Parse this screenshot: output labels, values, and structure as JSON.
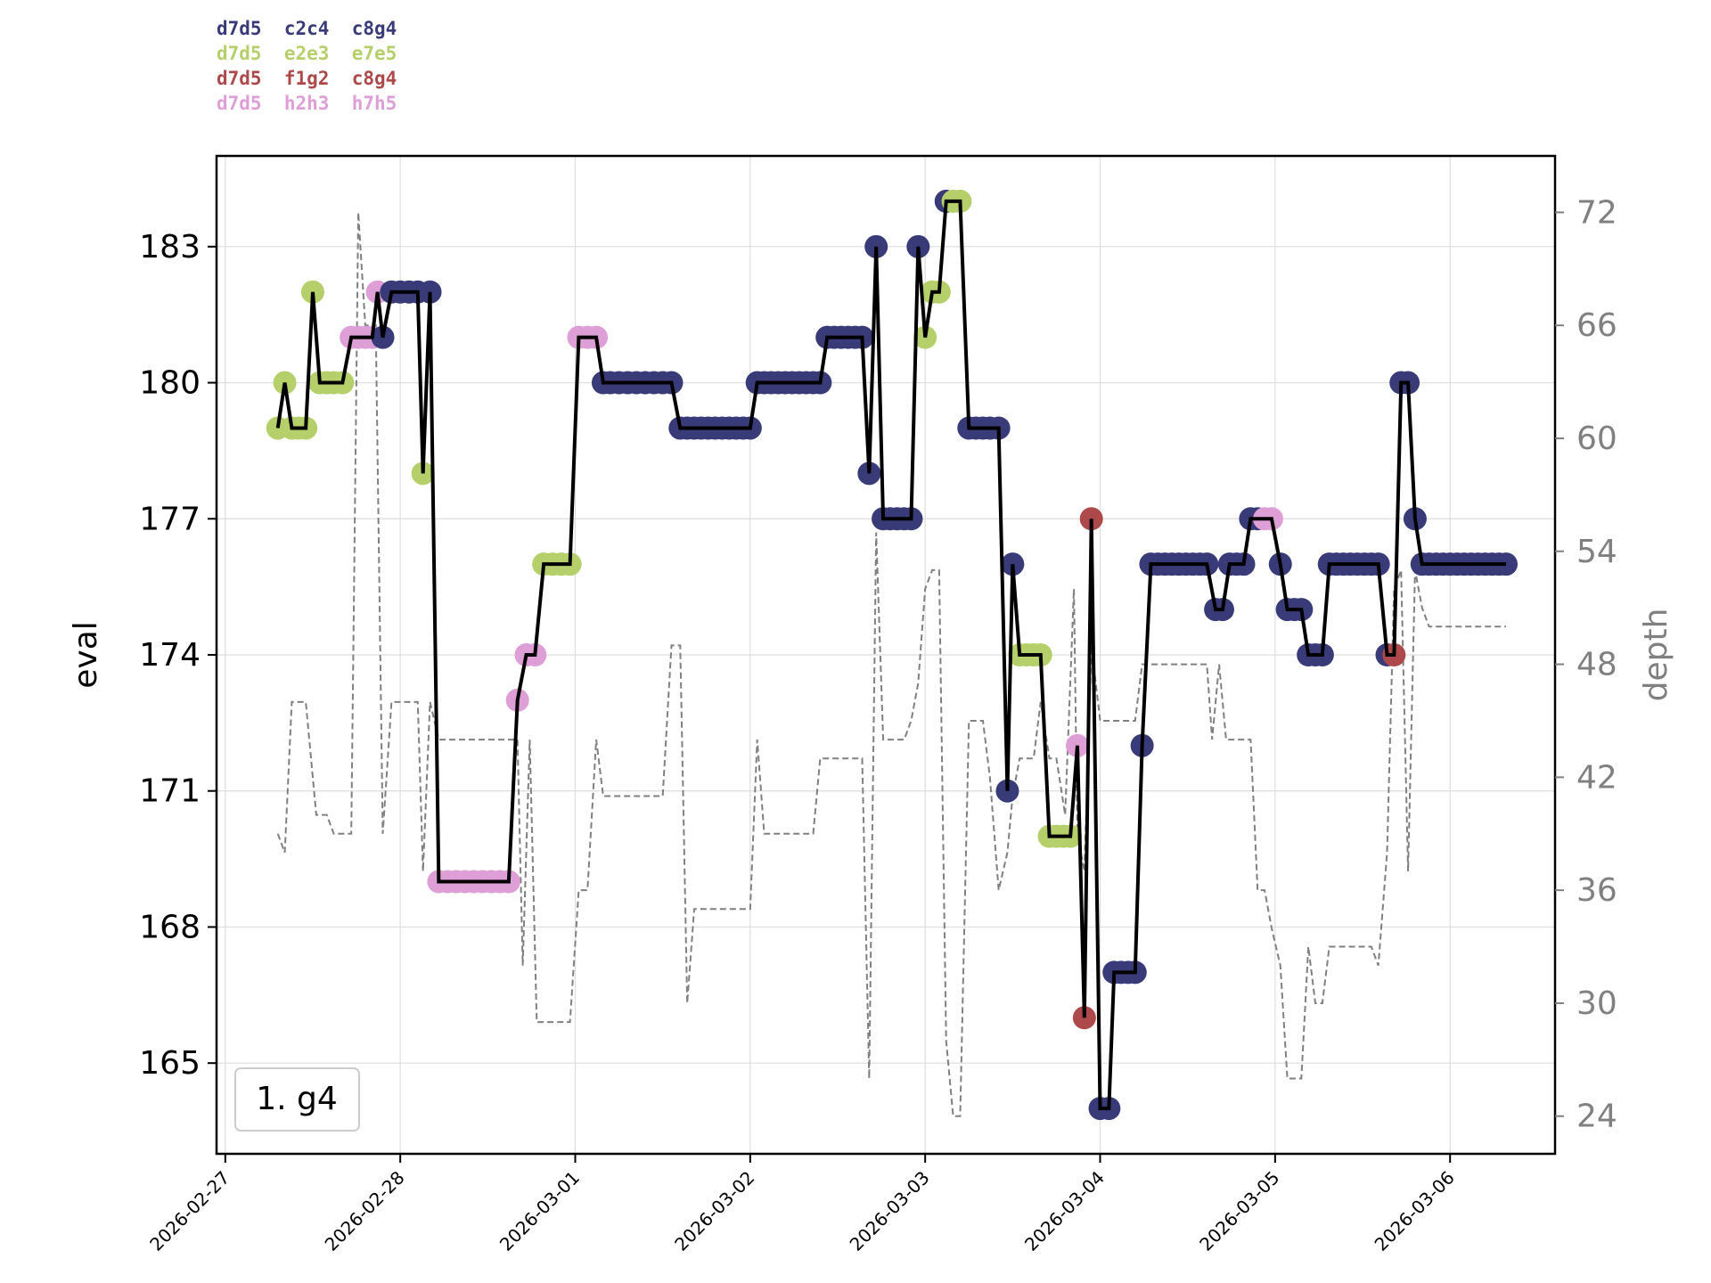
{
  "chart_data": {
    "type": "line",
    "title": "",
    "xlabel": "",
    "ylabel": "eval",
    "y2label": "depth",
    "annotation": "1. g4",
    "grid": true,
    "x_tick_labels": [
      "2026-02-27",
      "2026-02-28",
      "2026-03-01",
      "2026-03-02",
      "2026-03-03",
      "2026-03-04",
      "2026-03-05",
      "2026-03-06"
    ],
    "x_range_days": [
      -0.05,
      7.6
    ],
    "y_ticks": [
      165,
      168,
      171,
      174,
      177,
      180,
      183
    ],
    "y_range": [
      163.0,
      185.0
    ],
    "y2_ticks": [
      24,
      30,
      36,
      42,
      48,
      54,
      60,
      66,
      72
    ],
    "y2_range": [
      22.0,
      75.0
    ],
    "legend": [
      {
        "label": "d7d5  c2c4  c8g4",
        "color": "#393b79"
      },
      {
        "label": "d7d5  e2e3  e7e5",
        "color": "#b5cf6b"
      },
      {
        "label": "d7d5  f1g2  c8g4",
        "color": "#ad494a"
      },
      {
        "label": "d7d5  h2h3  h7h5",
        "color": "#de9ed6"
      }
    ],
    "series": [
      {
        "name": "eval",
        "color": "#000000",
        "points": [
          [
            0.3,
            179,
            1
          ],
          [
            0.34,
            180,
            1
          ],
          [
            0.38,
            179,
            1
          ],
          [
            0.42,
            179,
            1
          ],
          [
            0.46,
            179,
            1
          ],
          [
            0.5,
            182,
            1
          ],
          [
            0.54,
            180,
            1
          ],
          [
            0.58,
            180,
            1
          ],
          [
            0.62,
            180,
            1
          ],
          [
            0.67,
            180,
            1
          ],
          [
            0.72,
            181,
            3
          ],
          [
            0.76,
            181,
            3
          ],
          [
            0.8,
            181,
            3
          ],
          [
            0.84,
            181,
            3
          ],
          [
            0.87,
            182,
            3
          ],
          [
            0.9,
            181,
            0
          ],
          [
            0.95,
            182,
            0
          ],
          [
            1.0,
            182,
            0
          ],
          [
            1.05,
            182,
            0
          ],
          [
            1.1,
            182,
            0
          ],
          [
            1.13,
            178,
            1
          ],
          [
            1.17,
            182,
            0
          ],
          [
            1.22,
            169,
            3
          ],
          [
            1.27,
            169,
            3
          ],
          [
            1.32,
            169,
            3
          ],
          [
            1.37,
            169,
            3
          ],
          [
            1.42,
            169,
            3
          ],
          [
            1.47,
            169,
            3
          ],
          [
            1.52,
            169,
            3
          ],
          [
            1.57,
            169,
            3
          ],
          [
            1.62,
            169,
            3
          ],
          [
            1.67,
            173,
            3
          ],
          [
            1.72,
            174,
            3
          ],
          [
            1.77,
            174,
            3
          ],
          [
            1.82,
            176,
            1
          ],
          [
            1.87,
            176,
            1
          ],
          [
            1.92,
            176,
            1
          ],
          [
            1.97,
            176,
            1
          ],
          [
            2.02,
            181,
            3
          ],
          [
            2.07,
            181,
            3
          ],
          [
            2.12,
            181,
            3
          ],
          [
            2.16,
            180,
            0
          ],
          [
            2.2,
            180,
            0
          ],
          [
            2.25,
            180,
            0
          ],
          [
            2.3,
            180,
            0
          ],
          [
            2.35,
            180,
            0
          ],
          [
            2.4,
            180,
            0
          ],
          [
            2.45,
            180,
            0
          ],
          [
            2.5,
            180,
            0
          ],
          [
            2.55,
            180,
            0
          ],
          [
            2.6,
            179,
            0
          ],
          [
            2.64,
            179,
            0
          ],
          [
            2.68,
            179,
            0
          ],
          [
            2.72,
            179,
            0
          ],
          [
            2.76,
            179,
            0
          ],
          [
            2.8,
            179,
            0
          ],
          [
            2.84,
            179,
            0
          ],
          [
            2.88,
            179,
            0
          ],
          [
            2.92,
            179,
            0
          ],
          [
            2.96,
            179,
            0
          ],
          [
            3.0,
            179,
            0
          ],
          [
            3.04,
            180,
            0
          ],
          [
            3.08,
            180,
            0
          ],
          [
            3.12,
            180,
            0
          ],
          [
            3.16,
            180,
            0
          ],
          [
            3.2,
            180,
            0
          ],
          [
            3.24,
            180,
            0
          ],
          [
            3.28,
            180,
            0
          ],
          [
            3.32,
            180,
            0
          ],
          [
            3.36,
            180,
            0
          ],
          [
            3.4,
            180,
            0
          ],
          [
            3.44,
            181,
            0
          ],
          [
            3.48,
            181,
            0
          ],
          [
            3.52,
            181,
            0
          ],
          [
            3.56,
            181,
            0
          ],
          [
            3.6,
            181,
            0
          ],
          [
            3.64,
            181,
            0
          ],
          [
            3.68,
            178,
            0
          ],
          [
            3.72,
            183,
            0
          ],
          [
            3.76,
            177,
            0
          ],
          [
            3.8,
            177,
            0
          ],
          [
            3.84,
            177,
            0
          ],
          [
            3.88,
            177,
            0
          ],
          [
            3.92,
            177,
            0
          ],
          [
            3.96,
            183,
            0
          ],
          [
            4.0,
            181,
            1
          ],
          [
            4.04,
            182,
            1
          ],
          [
            4.08,
            182,
            1
          ],
          [
            4.12,
            184,
            0
          ],
          [
            4.16,
            184,
            1
          ],
          [
            4.2,
            184,
            1
          ],
          [
            4.25,
            179,
            0
          ],
          [
            4.29,
            179,
            0
          ],
          [
            4.33,
            179,
            0
          ],
          [
            4.37,
            179,
            0
          ],
          [
            4.42,
            179,
            0
          ],
          [
            4.47,
            171,
            0
          ],
          [
            4.5,
            176,
            0
          ],
          [
            4.54,
            174,
            1
          ],
          [
            4.58,
            174,
            1
          ],
          [
            4.62,
            174,
            1
          ],
          [
            4.66,
            174,
            1
          ],
          [
            4.71,
            170,
            1
          ],
          [
            4.75,
            170,
            1
          ],
          [
            4.79,
            170,
            1
          ],
          [
            4.83,
            170,
            1
          ],
          [
            4.87,
            172,
            3
          ],
          [
            4.91,
            166,
            2
          ],
          [
            4.95,
            177,
            2
          ],
          [
            5.0,
            164,
            0
          ],
          [
            5.05,
            164,
            0
          ],
          [
            5.08,
            167,
            0
          ],
          [
            5.12,
            167,
            0
          ],
          [
            5.16,
            167,
            0
          ],
          [
            5.2,
            167,
            0
          ],
          [
            5.24,
            172,
            0
          ],
          [
            5.29,
            176,
            0
          ],
          [
            5.33,
            176,
            0
          ],
          [
            5.37,
            176,
            0
          ],
          [
            5.41,
            176,
            0
          ],
          [
            5.45,
            176,
            0
          ],
          [
            5.49,
            176,
            0
          ],
          [
            5.53,
            176,
            0
          ],
          [
            5.57,
            176,
            0
          ],
          [
            5.61,
            176,
            0
          ],
          [
            5.66,
            175,
            0
          ],
          [
            5.7,
            175,
            0
          ],
          [
            5.74,
            176,
            0
          ],
          [
            5.78,
            176,
            0
          ],
          [
            5.82,
            176,
            0
          ],
          [
            5.86,
            177,
            0
          ],
          [
            5.9,
            177,
            0
          ],
          [
            5.94,
            177,
            3
          ],
          [
            5.98,
            177,
            3
          ],
          [
            6.03,
            176,
            0
          ],
          [
            6.07,
            175,
            0
          ],
          [
            6.11,
            175,
            0
          ],
          [
            6.15,
            175,
            0
          ],
          [
            6.19,
            174,
            0
          ],
          [
            6.23,
            174,
            0
          ],
          [
            6.27,
            174,
            0
          ],
          [
            6.31,
            176,
            0
          ],
          [
            6.35,
            176,
            0
          ],
          [
            6.39,
            176,
            0
          ],
          [
            6.43,
            176,
            0
          ],
          [
            6.47,
            176,
            0
          ],
          [
            6.51,
            176,
            0
          ],
          [
            6.55,
            176,
            0
          ],
          [
            6.59,
            176,
            0
          ],
          [
            6.64,
            174,
            0
          ],
          [
            6.68,
            174,
            2
          ],
          [
            6.72,
            180,
            0
          ],
          [
            6.76,
            180,
            0
          ],
          [
            6.8,
            177,
            0
          ],
          [
            6.84,
            176,
            0
          ],
          [
            6.88,
            176,
            0
          ],
          [
            6.92,
            176,
            0
          ],
          [
            6.96,
            176,
            0
          ],
          [
            7.0,
            176,
            0
          ],
          [
            7.04,
            176,
            0
          ],
          [
            7.08,
            176,
            0
          ],
          [
            7.12,
            176,
            0
          ],
          [
            7.16,
            176,
            0
          ],
          [
            7.2,
            176,
            0
          ],
          [
            7.24,
            176,
            0
          ],
          [
            7.28,
            176,
            0
          ],
          [
            7.32,
            176,
            0
          ]
        ]
      },
      {
        "name": "depth",
        "color": "#808080",
        "style": "dashed",
        "points": [
          [
            0.3,
            39
          ],
          [
            0.34,
            38
          ],
          [
            0.38,
            46
          ],
          [
            0.46,
            46
          ],
          [
            0.52,
            40
          ],
          [
            0.58,
            40
          ],
          [
            0.62,
            39
          ],
          [
            0.72,
            39
          ],
          [
            0.76,
            72
          ],
          [
            0.8,
            66
          ],
          [
            0.86,
            66
          ],
          [
            0.9,
            39
          ],
          [
            0.95,
            46
          ],
          [
            1.1,
            46
          ],
          [
            1.13,
            37
          ],
          [
            1.17,
            46
          ],
          [
            1.22,
            44
          ],
          [
            1.4,
            44
          ],
          [
            1.67,
            44
          ],
          [
            1.7,
            32
          ],
          [
            1.74,
            44
          ],
          [
            1.78,
            29
          ],
          [
            1.9,
            29
          ],
          [
            1.97,
            29
          ],
          [
            2.02,
            36
          ],
          [
            2.07,
            36
          ],
          [
            2.12,
            44
          ],
          [
            2.16,
            41
          ],
          [
            2.3,
            41
          ],
          [
            2.5,
            41
          ],
          [
            2.55,
            49
          ],
          [
            2.6,
            49
          ],
          [
            2.64,
            30
          ],
          [
            2.68,
            35
          ],
          [
            2.8,
            35
          ],
          [
            3.0,
            35
          ],
          [
            3.04,
            44
          ],
          [
            3.08,
            39
          ],
          [
            3.2,
            39
          ],
          [
            3.36,
            39
          ],
          [
            3.4,
            43
          ],
          [
            3.64,
            43
          ],
          [
            3.68,
            26
          ],
          [
            3.72,
            55
          ],
          [
            3.76,
            44
          ],
          [
            3.88,
            44
          ],
          [
            3.92,
            45
          ],
          [
            3.96,
            47
          ],
          [
            4.0,
            52
          ],
          [
            4.04,
            53
          ],
          [
            4.08,
            53
          ],
          [
            4.12,
            28
          ],
          [
            4.16,
            24
          ],
          [
            4.2,
            24
          ],
          [
            4.25,
            45
          ],
          [
            4.29,
            45
          ],
          [
            4.33,
            45
          ],
          [
            4.37,
            42
          ],
          [
            4.42,
            36
          ],
          [
            4.47,
            38
          ],
          [
            4.5,
            41
          ],
          [
            4.54,
            43
          ],
          [
            4.62,
            43
          ],
          [
            4.66,
            46
          ],
          [
            4.71,
            43
          ],
          [
            4.75,
            43
          ],
          [
            4.8,
            40
          ],
          [
            4.85,
            52
          ],
          [
            4.87,
            39
          ],
          [
            4.91,
            37
          ],
          [
            4.95,
            49
          ],
          [
            5.0,
            45
          ],
          [
            5.2,
            45
          ],
          [
            5.24,
            48
          ],
          [
            5.29,
            48
          ],
          [
            5.53,
            48
          ],
          [
            5.61,
            48
          ],
          [
            5.64,
            44
          ],
          [
            5.68,
            48
          ],
          [
            5.72,
            44
          ],
          [
            5.86,
            44
          ],
          [
            5.9,
            36
          ],
          [
            5.94,
            36
          ],
          [
            5.98,
            34
          ],
          [
            6.03,
            32
          ],
          [
            6.07,
            26
          ],
          [
            6.11,
            26
          ],
          [
            6.15,
            26
          ],
          [
            6.19,
            33
          ],
          [
            6.23,
            30
          ],
          [
            6.27,
            30
          ],
          [
            6.31,
            33
          ],
          [
            6.55,
            33
          ],
          [
            6.59,
            32
          ],
          [
            6.64,
            38
          ],
          [
            6.68,
            52
          ],
          [
            6.72,
            53
          ],
          [
            6.76,
            37
          ],
          [
            6.8,
            53
          ],
          [
            6.84,
            51
          ],
          [
            6.88,
            50
          ],
          [
            7.0,
            50
          ],
          [
            7.32,
            50
          ]
        ]
      }
    ]
  }
}
